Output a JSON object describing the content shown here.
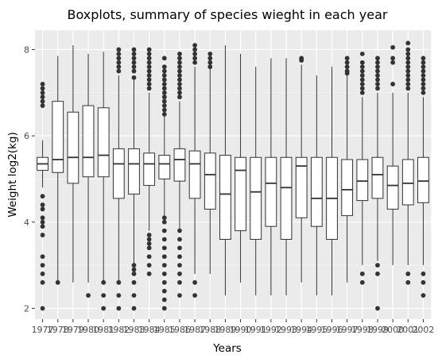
{
  "chart_data": {
    "type": "boxplot",
    "title": "Boxplots, summary of species wieght in each year",
    "xlabel": "Years",
    "ylabel": "Weight log2(kg)",
    "ylim": [
      1.75,
      8.45
    ],
    "yticks": [
      2,
      4,
      6,
      8
    ],
    "grid": true,
    "legend": "none",
    "colors": {
      "panel": "#ebebeb",
      "grid_major": "#ffffff",
      "box_fill": "#ffffff",
      "box_line": "#333333",
      "tick_label": "#4d4d4d"
    },
    "categories": [
      "1977",
      "1978",
      "1979",
      "1980",
      "1981",
      "1982",
      "1983",
      "1984",
      "1985",
      "1986",
      "1987",
      "1988",
      "1989",
      "1990",
      "1991",
      "1992",
      "1993",
      "1994",
      "1995",
      "1996",
      "1997",
      "1998",
      "1999",
      "2000",
      "2001",
      "2002"
    ],
    "boxes": [
      {
        "year": "1977",
        "whisker_low": 4.8,
        "q1": 5.2,
        "median": 5.35,
        "q3": 5.5,
        "whisker_high": 5.9,
        "outliers": [
          2.0,
          2.6,
          2.8,
          3.0,
          3.2,
          3.7,
          3.9,
          4.0,
          4.1,
          4.3,
          4.4,
          4.6,
          6.7,
          6.8,
          6.9,
          7.0,
          7.1,
          7.2
        ]
      },
      {
        "year": "1978",
        "whisker_low": 2.6,
        "q1": 5.15,
        "median": 5.45,
        "q3": 6.8,
        "whisker_high": 7.85,
        "outliers": [
          2.6
        ]
      },
      {
        "year": "1979",
        "whisker_low": 2.6,
        "q1": 4.9,
        "median": 5.5,
        "q3": 6.55,
        "whisker_high": 8.1,
        "outliers": []
      },
      {
        "year": "1980",
        "whisker_low": 2.6,
        "q1": 5.05,
        "median": 5.5,
        "q3": 6.7,
        "whisker_high": 7.9,
        "outliers": [
          2.3
        ]
      },
      {
        "year": "1981",
        "whisker_low": 2.6,
        "q1": 5.05,
        "median": 5.55,
        "q3": 6.65,
        "whisker_high": 7.95,
        "outliers": [
          2.0,
          2.3,
          2.6
        ]
      },
      {
        "year": "1982",
        "whisker_low": 2.6,
        "q1": 4.55,
        "median": 5.35,
        "q3": 5.7,
        "whisker_high": 7.4,
        "outliers": [
          2.0,
          2.3,
          2.6,
          7.5,
          7.6,
          7.7,
          7.8,
          7.9,
          8.0
        ]
      },
      {
        "year": "1983",
        "whisker_low": 3.0,
        "q1": 4.65,
        "median": 5.35,
        "q3": 5.7,
        "whisker_high": 7.3,
        "outliers": [
          2.0,
          2.3,
          2.6,
          2.8,
          2.9,
          3.0,
          7.35,
          7.5,
          7.6,
          7.7,
          7.8,
          7.9,
          8.0
        ]
      },
      {
        "year": "1984",
        "whisker_low": 3.8,
        "q1": 4.85,
        "median": 5.35,
        "q3": 5.6,
        "whisker_high": 7.0,
        "outliers": [
          2.8,
          3.0,
          3.2,
          3.4,
          3.5,
          3.6,
          3.7,
          7.1,
          7.2,
          7.3,
          7.4,
          7.5,
          7.6,
          7.7,
          7.8,
          7.9,
          8.0
        ]
      },
      {
        "year": "1985",
        "whisker_low": 4.15,
        "q1": 5.0,
        "median": 5.35,
        "q3": 5.55,
        "whisker_high": 6.45,
        "outliers": [
          2.0,
          2.2,
          2.4,
          2.6,
          2.8,
          3.0,
          3.2,
          3.4,
          3.6,
          3.8,
          4.0,
          4.1,
          6.5,
          6.6,
          6.7,
          6.8,
          6.9,
          7.0,
          7.1,
          7.2,
          7.3,
          7.4,
          7.5,
          7.6,
          7.8
        ]
      },
      {
        "year": "1986",
        "whisker_low": 3.85,
        "q1": 4.95,
        "median": 5.45,
        "q3": 5.7,
        "whisker_high": 6.8,
        "outliers": [
          2.3,
          2.6,
          2.8,
          3.0,
          3.2,
          3.4,
          3.6,
          3.8,
          6.9,
          7.0,
          7.1,
          7.2,
          7.3,
          7.4,
          7.5,
          7.6,
          7.7,
          7.8,
          7.9
        ]
      },
      {
        "year": "1987",
        "whisker_low": 2.8,
        "q1": 4.55,
        "median": 5.35,
        "q3": 5.65,
        "whisker_high": 7.6,
        "outliers": [
          2.3,
          2.6,
          7.7,
          7.8,
          7.9,
          8.0,
          8.1
        ]
      },
      {
        "year": "1988",
        "whisker_low": 2.8,
        "q1": 4.3,
        "median": 5.1,
        "q3": 5.6,
        "whisker_high": 7.55,
        "outliers": [
          7.6,
          7.7,
          7.8,
          7.9
        ]
      },
      {
        "year": "1989",
        "whisker_low": 2.3,
        "q1": 3.6,
        "median": 4.65,
        "q3": 5.55,
        "whisker_high": 8.1,
        "outliers": []
      },
      {
        "year": "1990",
        "whisker_low": 2.6,
        "q1": 3.8,
        "median": 5.2,
        "q3": 5.5,
        "whisker_high": 7.9,
        "outliers": []
      },
      {
        "year": "1991",
        "whisker_low": 2.3,
        "q1": 3.6,
        "median": 4.7,
        "q3": 5.5,
        "whisker_high": 7.6,
        "outliers": []
      },
      {
        "year": "1992",
        "whisker_low": 2.3,
        "q1": 3.9,
        "median": 4.9,
        "q3": 5.5,
        "whisker_high": 7.8,
        "outliers": []
      },
      {
        "year": "1993",
        "whisker_low": 2.3,
        "q1": 3.6,
        "median": 4.8,
        "q3": 5.5,
        "whisker_high": 7.8,
        "outliers": []
      },
      {
        "year": "1994",
        "whisker_low": 2.6,
        "q1": 4.1,
        "median": 5.3,
        "q3": 5.5,
        "whisker_high": 7.65,
        "outliers": [
          7.75,
          7.8
        ]
      },
      {
        "year": "1995",
        "whisker_low": 2.3,
        "q1": 3.9,
        "median": 4.55,
        "q3": 5.5,
        "whisker_high": 7.4,
        "outliers": []
      },
      {
        "year": "1996",
        "whisker_low": 2.3,
        "q1": 3.6,
        "median": 4.55,
        "q3": 5.5,
        "whisker_high": 7.6,
        "outliers": []
      },
      {
        "year": "1997",
        "whisker_low": 2.6,
        "q1": 4.15,
        "median": 4.75,
        "q3": 5.45,
        "whisker_high": 7.4,
        "outliers": [
          7.45,
          7.5,
          7.6,
          7.7,
          7.8
        ]
      },
      {
        "year": "1998",
        "whisker_low": 3.0,
        "q1": 4.5,
        "median": 4.95,
        "q3": 5.45,
        "whisker_high": 6.9,
        "outliers": [
          2.6,
          2.8,
          7.0,
          7.1,
          7.2,
          7.3,
          7.4,
          7.5,
          7.6,
          7.7,
          7.9
        ]
      },
      {
        "year": "1999",
        "whisker_low": 3.1,
        "q1": 4.55,
        "median": 5.1,
        "q3": 5.5,
        "whisker_high": 7.0,
        "outliers": [
          2.0,
          2.8,
          3.0,
          7.1,
          7.2,
          7.3,
          7.4,
          7.5,
          7.6,
          7.7,
          7.8
        ]
      },
      {
        "year": "2000",
        "whisker_low": 3.0,
        "q1": 4.3,
        "median": 4.85,
        "q3": 5.3,
        "whisker_high": 7.0,
        "outliers": [
          7.2,
          7.7,
          7.8,
          8.05
        ]
      },
      {
        "year": "2001",
        "whisker_low": 3.0,
        "q1": 4.4,
        "median": 4.9,
        "q3": 5.45,
        "whisker_high": 7.0,
        "outliers": [
          2.6,
          2.8,
          7.1,
          7.2,
          7.3,
          7.4,
          7.5,
          7.6,
          7.7,
          7.8,
          7.9,
          8.0,
          8.15
        ]
      },
      {
        "year": "2002",
        "whisker_low": 3.0,
        "q1": 4.45,
        "median": 4.95,
        "q3": 5.5,
        "whisker_high": 6.9,
        "outliers": [
          2.3,
          2.6,
          2.8,
          7.0,
          7.1,
          7.2,
          7.3,
          7.4,
          7.5,
          7.6,
          7.7,
          7.8
        ]
      }
    ]
  }
}
